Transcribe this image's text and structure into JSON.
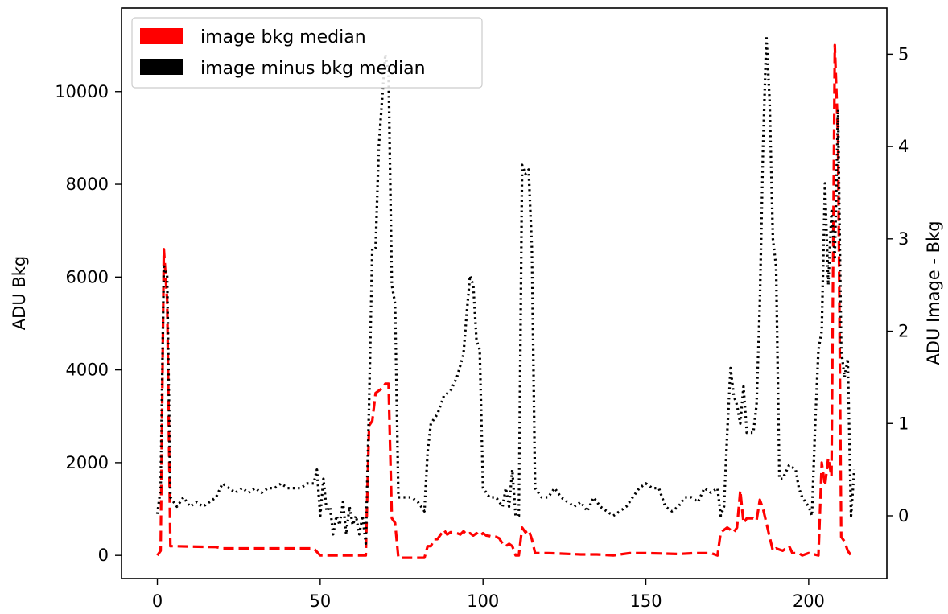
{
  "chart_data": {
    "type": "line",
    "xlim": [
      -11,
      224
    ],
    "ylim_left": [
      -500,
      11800
    ],
    "ylim_right": [
      -0.68,
      5.5
    ],
    "ylabel_left": "ADU Bkg",
    "ylabel_right": "ADU Image - Bkg",
    "x_ticks": [
      0,
      50,
      100,
      150,
      200
    ],
    "y_ticks_left": [
      0,
      2000,
      4000,
      6000,
      8000,
      10000
    ],
    "y_ticks_right": [
      0,
      1,
      2,
      3,
      4,
      5
    ],
    "legend_position": "top-left",
    "grid": false,
    "series": [
      {
        "name": "image bkg median",
        "axis": "left",
        "color": "#ff0000",
        "style": "dashed",
        "points": [
          [
            0,
            0
          ],
          [
            1,
            100
          ],
          [
            2,
            6600
          ],
          [
            3,
            5500
          ],
          [
            4,
            200
          ],
          [
            5,
            200
          ],
          [
            10,
            190
          ],
          [
            18,
            180
          ],
          [
            20,
            150
          ],
          [
            30,
            150
          ],
          [
            40,
            150
          ],
          [
            48,
            150
          ],
          [
            50,
            0
          ],
          [
            55,
            0
          ],
          [
            60,
            0
          ],
          [
            64,
            0
          ],
          [
            65,
            2800
          ],
          [
            66,
            2900
          ],
          [
            67,
            3500
          ],
          [
            69,
            3600
          ],
          [
            70,
            3700
          ],
          [
            71,
            3700
          ],
          [
            72,
            800
          ],
          [
            73,
            700
          ],
          [
            74,
            -50
          ],
          [
            80,
            -50
          ],
          [
            82,
            -50
          ],
          [
            83,
            200
          ],
          [
            84,
            200
          ],
          [
            85,
            350
          ],
          [
            86,
            350
          ],
          [
            87,
            450
          ],
          [
            88,
            550
          ],
          [
            89,
            450
          ],
          [
            90,
            500
          ],
          [
            91,
            500
          ],
          [
            92,
            480
          ],
          [
            93,
            450
          ],
          [
            94,
            520
          ],
          [
            95,
            450
          ],
          [
            96,
            480
          ],
          [
            97,
            430
          ],
          [
            98,
            480
          ],
          [
            99,
            420
          ],
          [
            100,
            480
          ],
          [
            101,
            430
          ],
          [
            102,
            420
          ],
          [
            103,
            400
          ],
          [
            104,
            400
          ],
          [
            105,
            370
          ],
          [
            106,
            250
          ],
          [
            107,
            200
          ],
          [
            108,
            250
          ],
          [
            109,
            200
          ],
          [
            110,
            0
          ],
          [
            111,
            0
          ],
          [
            112,
            600
          ],
          [
            113,
            500
          ],
          [
            114,
            550
          ],
          [
            115,
            350
          ],
          [
            116,
            50
          ],
          [
            120,
            50
          ],
          [
            130,
            20
          ],
          [
            135,
            20
          ],
          [
            140,
            0
          ],
          [
            145,
            50
          ],
          [
            150,
            50
          ],
          [
            160,
            30
          ],
          [
            165,
            50
          ],
          [
            170,
            50
          ],
          [
            172,
            0
          ],
          [
            173,
            500
          ],
          [
            175,
            600
          ],
          [
            176,
            550
          ],
          [
            177,
            500
          ],
          [
            178,
            600
          ],
          [
            179,
            1400
          ],
          [
            180,
            700
          ],
          [
            181,
            800
          ],
          [
            183,
            800
          ],
          [
            184,
            750
          ],
          [
            185,
            1200
          ],
          [
            186,
            1000
          ],
          [
            187,
            700
          ],
          [
            188,
            400
          ],
          [
            189,
            100
          ],
          [
            190,
            150
          ],
          [
            192,
            100
          ],
          [
            194,
            200
          ],
          [
            195,
            50
          ],
          [
            196,
            50
          ],
          [
            197,
            50
          ],
          [
            198,
            0
          ],
          [
            200,
            50
          ],
          [
            203,
            0
          ],
          [
            204,
            2000
          ],
          [
            205,
            1500
          ],
          [
            206,
            2100
          ],
          [
            207,
            1700
          ],
          [
            208,
            11000
          ],
          [
            209,
            9000
          ],
          [
            210,
            400
          ],
          [
            211,
            300
          ],
          [
            212,
            100
          ],
          [
            213,
            0
          ],
          [
            214,
            50
          ]
        ]
      },
      {
        "name": "image minus bkg median",
        "axis": "right",
        "color": "#000000",
        "style": "dotted",
        "points": [
          [
            0,
            0.02
          ],
          [
            1,
            0.3
          ],
          [
            2,
            2.7
          ],
          [
            3,
            2.6
          ],
          [
            4,
            0.2
          ],
          [
            6,
            0.1
          ],
          [
            8,
            0.2
          ],
          [
            10,
            0.1
          ],
          [
            12,
            0.15
          ],
          [
            14,
            0.1
          ],
          [
            16,
            0.15
          ],
          [
            18,
            0.2
          ],
          [
            20,
            0.35
          ],
          [
            22,
            0.3
          ],
          [
            24,
            0.25
          ],
          [
            26,
            0.3
          ],
          [
            28,
            0.25
          ],
          [
            30,
            0.3
          ],
          [
            32,
            0.25
          ],
          [
            34,
            0.3
          ],
          [
            36,
            0.3
          ],
          [
            38,
            0.35
          ],
          [
            40,
            0.3
          ],
          [
            42,
            0.3
          ],
          [
            44,
            0.3
          ],
          [
            46,
            0.35
          ],
          [
            48,
            0.35
          ],
          [
            49,
            0.5
          ],
          [
            50,
            0.0
          ],
          [
            51,
            0.4
          ],
          [
            52,
            0.05
          ],
          [
            53,
            0.1
          ],
          [
            54,
            -0.2
          ],
          [
            55,
            0.0
          ],
          [
            56,
            -0.1
          ],
          [
            57,
            0.15
          ],
          [
            58,
            -0.2
          ],
          [
            59,
            0.1
          ],
          [
            60,
            -0.1
          ],
          [
            61,
            0.0
          ],
          [
            62,
            -0.2
          ],
          [
            63,
            0.0
          ],
          [
            64,
            -0.3
          ],
          [
            65,
            1.2
          ],
          [
            66,
            2.9
          ],
          [
            67,
            2.9
          ],
          [
            68,
            4.0
          ],
          [
            69,
            4.5
          ],
          [
            70,
            5.0
          ],
          [
            71,
            4.8
          ],
          [
            72,
            2.5
          ],
          [
            73,
            2.3
          ],
          [
            74,
            0.2
          ],
          [
            76,
            0.2
          ],
          [
            78,
            0.2
          ],
          [
            80,
            0.15
          ],
          [
            82,
            0.05
          ],
          [
            83,
            0.7
          ],
          [
            84,
            1.0
          ],
          [
            86,
            1.1
          ],
          [
            88,
            1.3
          ],
          [
            90,
            1.35
          ],
          [
            92,
            1.5
          ],
          [
            94,
            1.75
          ],
          [
            95,
            2.2
          ],
          [
            96,
            2.6
          ],
          [
            97,
            2.5
          ],
          [
            98,
            1.9
          ],
          [
            99,
            1.8
          ],
          [
            100,
            0.3
          ],
          [
            102,
            0.2
          ],
          [
            104,
            0.2
          ],
          [
            106,
            0.1
          ],
          [
            107,
            0.3
          ],
          [
            108,
            0.1
          ],
          [
            109,
            0.5
          ],
          [
            110,
            0.0
          ],
          [
            111,
            0.0
          ],
          [
            112,
            3.8
          ],
          [
            113,
            3.7
          ],
          [
            114,
            3.75
          ],
          [
            115,
            2.9
          ],
          [
            116,
            0.3
          ],
          [
            118,
            0.2
          ],
          [
            120,
            0.2
          ],
          [
            122,
            0.3
          ],
          [
            124,
            0.2
          ],
          [
            126,
            0.15
          ],
          [
            128,
            0.1
          ],
          [
            130,
            0.15
          ],
          [
            132,
            0.05
          ],
          [
            134,
            0.2
          ],
          [
            136,
            0.1
          ],
          [
            138,
            0.05
          ],
          [
            140,
            0.0
          ],
          [
            142,
            0.05
          ],
          [
            144,
            0.1
          ],
          [
            146,
            0.2
          ],
          [
            148,
            0.3
          ],
          [
            150,
            0.35
          ],
          [
            152,
            0.3
          ],
          [
            154,
            0.3
          ],
          [
            156,
            0.1
          ],
          [
            158,
            0.05
          ],
          [
            160,
            0.1
          ],
          [
            162,
            0.2
          ],
          [
            164,
            0.2
          ],
          [
            166,
            0.15
          ],
          [
            168,
            0.3
          ],
          [
            170,
            0.25
          ],
          [
            172,
            0.3
          ],
          [
            173,
            0.0
          ],
          [
            174,
            0.1
          ],
          [
            175,
            0.9
          ],
          [
            176,
            1.6
          ],
          [
            177,
            1.3
          ],
          [
            178,
            1.2
          ],
          [
            179,
            1.0
          ],
          [
            180,
            1.4
          ],
          [
            181,
            0.9
          ],
          [
            182,
            0.9
          ],
          [
            183,
            0.9
          ],
          [
            184,
            1.2
          ],
          [
            185,
            2.3
          ],
          [
            186,
            4.0
          ],
          [
            187,
            5.2
          ],
          [
            188,
            4.5
          ],
          [
            189,
            3.0
          ],
          [
            190,
            2.7
          ],
          [
            191,
            0.4
          ],
          [
            192,
            0.4
          ],
          [
            194,
            0.55
          ],
          [
            196,
            0.5
          ],
          [
            197,
            0.3
          ],
          [
            198,
            0.2
          ],
          [
            200,
            0.1
          ],
          [
            201,
            0.0
          ],
          [
            202,
            1.0
          ],
          [
            203,
            1.8
          ],
          [
            204,
            2.0
          ],
          [
            205,
            3.6
          ],
          [
            206,
            2.5
          ],
          [
            207,
            3.3
          ],
          [
            208,
            2.8
          ],
          [
            209,
            4.4
          ],
          [
            210,
            1.8
          ],
          [
            211,
            1.5
          ],
          [
            212,
            1.7
          ],
          [
            213,
            0.0
          ],
          [
            214,
            0.5
          ]
        ]
      }
    ]
  }
}
